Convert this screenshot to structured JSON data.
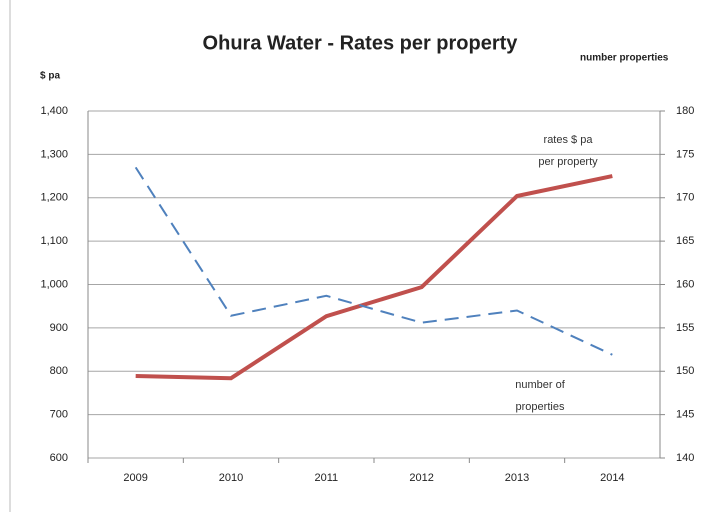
{
  "chart_data": {
    "type": "line",
    "title": "Ohura Water - Rates per property",
    "y_label": "$ pa",
    "y2_label": "number properties",
    "categories": [
      "2009",
      "2010",
      "2011",
      "2012",
      "2013",
      "2014"
    ],
    "series": [
      {
        "name": "rates $ pa per property",
        "color": "#c0504d",
        "values": [
          789,
          784,
          927,
          994,
          1204,
          1250
        ]
      },
      {
        "name": "number of properties",
        "color": "#4f81bd",
        "axis": "y2",
        "dashed": true,
        "values": [
          173.5,
          156.4,
          158.7,
          155.6,
          157,
          151.9
        ]
      }
    ],
    "annotations": [
      [
        "rates $ pa",
        "per property"
      ],
      [
        "number  of",
        "properties"
      ]
    ],
    "ylim": [
      600,
      1400
    ],
    "yticks": [
      600,
      700,
      800,
      900,
      {
        "value": 1000,
        "label": "1,000"
      },
      {
        "value": 1100,
        "label": "1,100"
      },
      {
        "value": 1200,
        "label": "1,200"
      },
      {
        "value": 1300,
        "label": "1,300"
      },
      {
        "value": 1400,
        "label": "1,400"
      }
    ],
    "y2lim": [
      140,
      180
    ],
    "y2ticks": [
      140,
      145,
      150,
      155,
      160,
      165,
      170,
      175,
      180
    ],
    "grid": true
  }
}
